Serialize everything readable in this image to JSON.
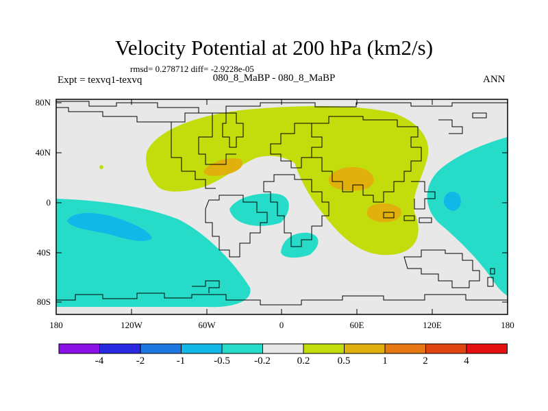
{
  "title": "Velocity Potential at 200 hPa (km2/s)",
  "stats": "rmsd= 0.278712 diff= -2.9228e-05",
  "expt": "Expt = texvq1-texvq",
  "subtitle": "080_8_MaBP - 080_8_MaBP",
  "season": "ANN",
  "y_ticks": [
    "80N",
    "40N",
    "0",
    "40S",
    "80S"
  ],
  "x_ticks": [
    "180",
    "120W",
    "60W",
    "0",
    "60E",
    "120E",
    "180"
  ],
  "colorbar": {
    "colors": [
      "#8a10e6",
      "#2a2ae0",
      "#1c78e0",
      "#10b8e8",
      "#26dcc8",
      "#e8e8e8",
      "#c2dc0c",
      "#e2b00c",
      "#e67814",
      "#e04612",
      "#e41010"
    ],
    "labels": [
      "-4",
      "-2",
      "-1",
      "-0.5",
      "-0.2",
      "0.2",
      "0.5",
      "1",
      "2",
      "4"
    ]
  },
  "palette": {
    "background_field": "#e8e8e8",
    "coast": "#000000"
  }
}
